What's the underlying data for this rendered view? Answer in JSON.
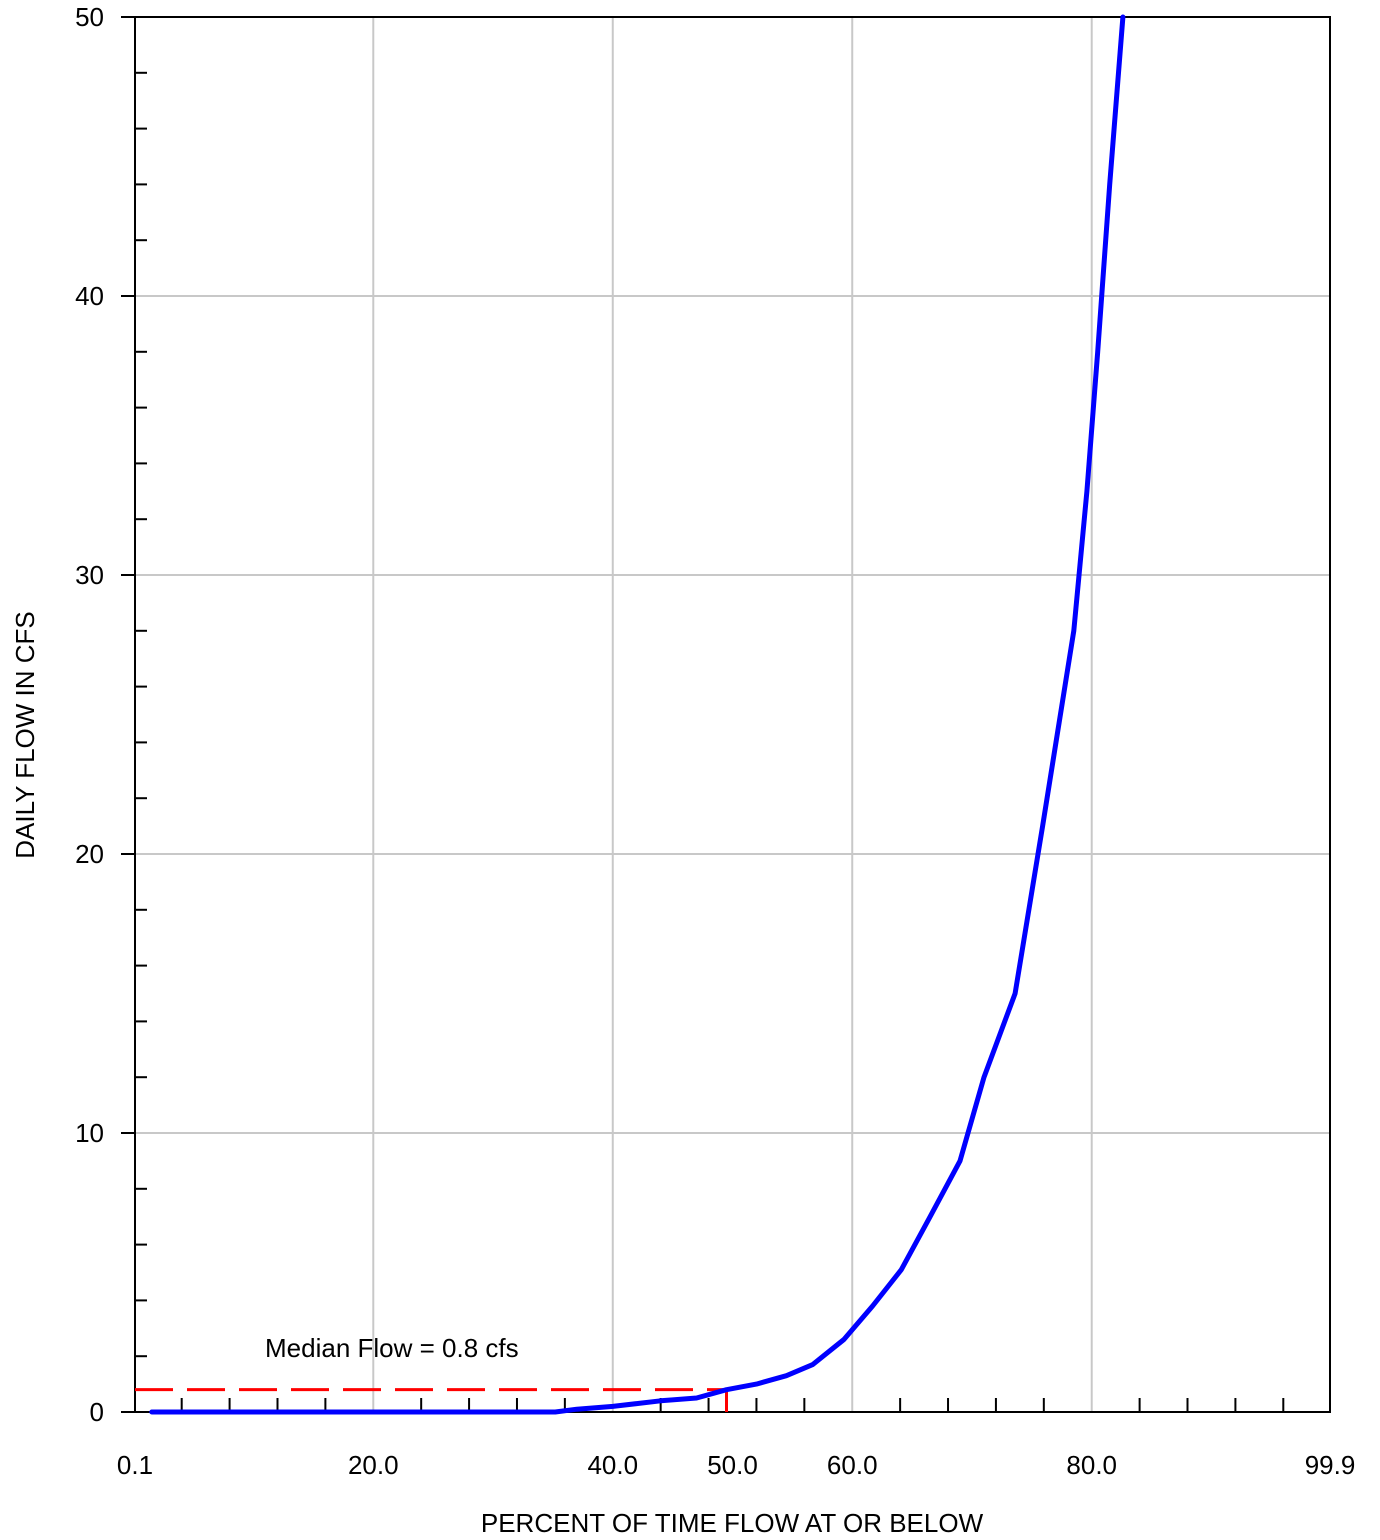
{
  "chart_data": {
    "type": "line",
    "title": "",
    "xlabel": "PERCENT OF TIME FLOW AT OR BELOW",
    "ylabel": "DAILY FLOW IN CFS",
    "xlim": [
      0.1,
      99.9
    ],
    "ylim": [
      0,
      50
    ],
    "grid": true,
    "x_tick_labels": [
      {
        "value": 0.1,
        "label": "0.1"
      },
      {
        "value": 20.0,
        "label": "20.0"
      },
      {
        "value": 40.0,
        "label": "40.0"
      },
      {
        "value": 50.0,
        "label": "50.0"
      },
      {
        "value": 60.0,
        "label": "60.0"
      },
      {
        "value": 80.0,
        "label": "80.0"
      },
      {
        "value": 99.9,
        "label": "99.9"
      }
    ],
    "x_gridlines": [
      20,
      40,
      60,
      80
    ],
    "x_minor_ticks": [
      4,
      8,
      12,
      16,
      24,
      28,
      32,
      36,
      44,
      48,
      52,
      56,
      64,
      68,
      72,
      76,
      84,
      88,
      92,
      96
    ],
    "y_tick_labels": [
      {
        "value": 0,
        "label": "0"
      },
      {
        "value": 10,
        "label": "10"
      },
      {
        "value": 20,
        "label": "20"
      },
      {
        "value": 30,
        "label": "30"
      },
      {
        "value": 40,
        "label": "40"
      },
      {
        "value": 50,
        "label": "50"
      }
    ],
    "y_minor_ticks": [
      2,
      4,
      6,
      8,
      12,
      14,
      16,
      18,
      22,
      24,
      26,
      28,
      32,
      34,
      36,
      38,
      42,
      44,
      46,
      48
    ],
    "series": [
      {
        "color": "#0000ff",
        "x": [
          1.5,
          10,
          20,
          30,
          35.2,
          37,
          40,
          42,
          44,
          47,
          49.5,
          52,
          54.5,
          56.7,
          59.3,
          61.7,
          64.1,
          66.5,
          69,
          71,
          73.6,
          75.9,
          78.5,
          79.6,
          80.5,
          81.5,
          82.6
        ],
        "y": [
          0,
          0,
          0,
          0,
          0,
          0.1,
          0.2,
          0.3,
          0.4,
          0.5,
          0.8,
          1.0,
          1.3,
          1.7,
          2.6,
          3.8,
          5.1,
          7.0,
          9.0,
          12.0,
          15.0,
          21.0,
          28.0,
          33.0,
          38.0,
          44.0,
          50.0
        ]
      }
    ],
    "median_line": {
      "x": 49.5,
      "y": 0.8,
      "color": "#ff0000",
      "style": "dashed"
    },
    "annotation": "Median Flow = 0.8 cfs"
  },
  "colors": {
    "axis": "#000000",
    "grid": "#c8c8c8"
  }
}
